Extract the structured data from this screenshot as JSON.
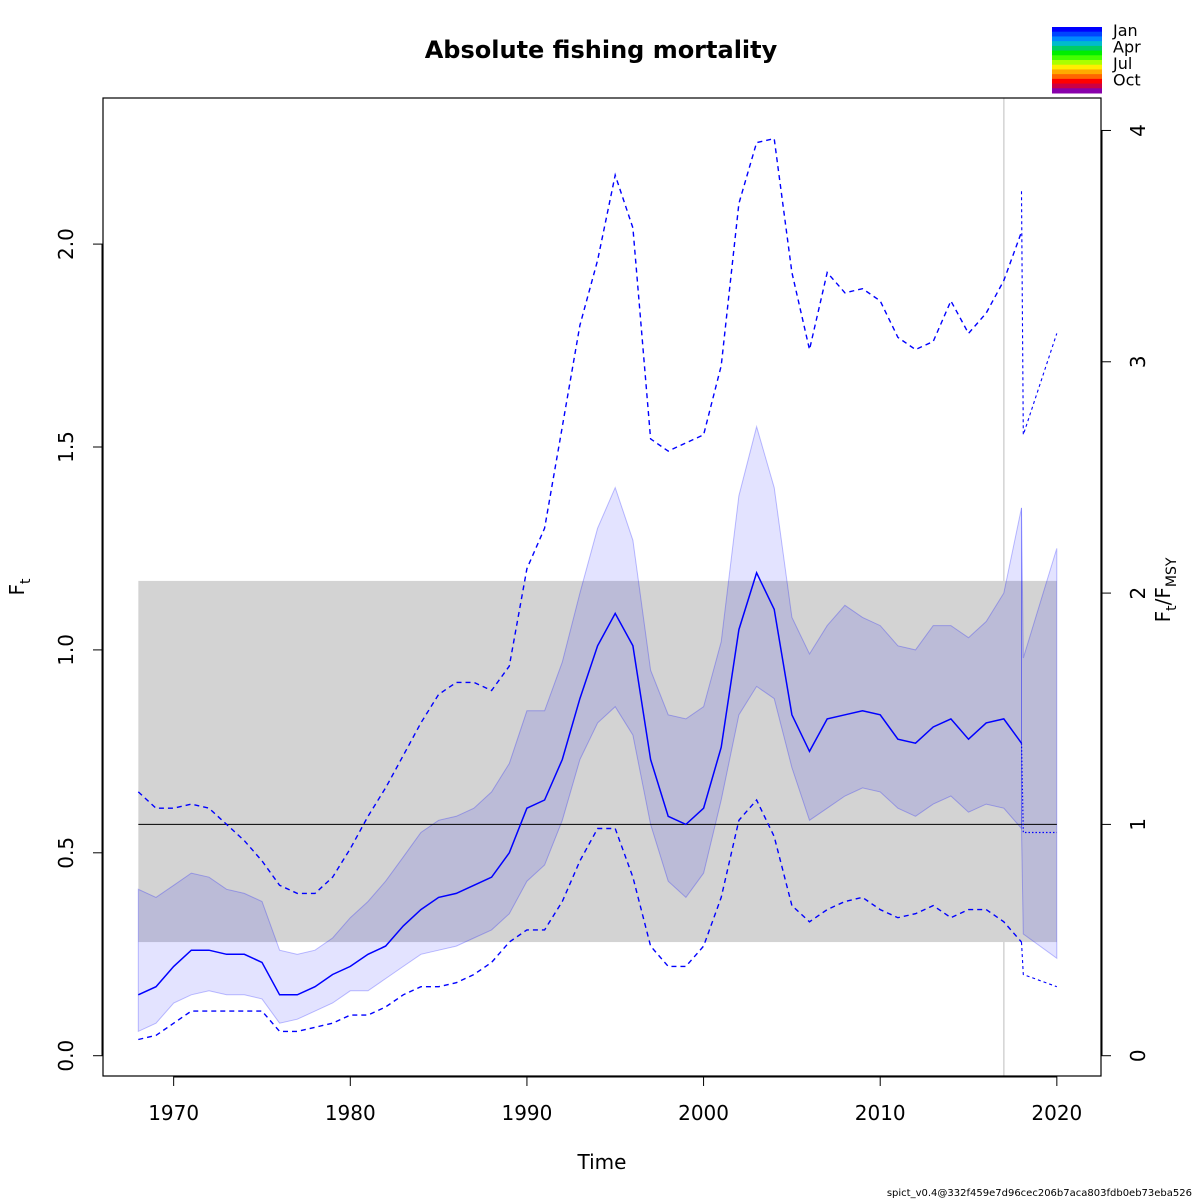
{
  "chart_data": {
    "type": "line",
    "title": "Absolute fishing mortality",
    "xlabel": "Time",
    "ylabel": "F",
    "ylabel_sub": "t",
    "y2label_main": "F",
    "y2label_sub1": "t",
    "y2label_slash": "/F",
    "y2label_sub2": "MSY",
    "xlim": [
      1966,
      2022.5
    ],
    "ylim": [
      -0.05,
      2.36
    ],
    "fmsy": 0.57,
    "x_ticks": [
      "1970",
      "1980",
      "1990",
      "2000",
      "2010",
      "2020"
    ],
    "y_ticks": [
      "0.0",
      "0.5",
      "1.0",
      "1.5",
      "2.0"
    ],
    "y2_ticks": [
      "0",
      "1",
      "2",
      "3",
      "4"
    ],
    "vline_x": 2017,
    "fmsy_band": {
      "x": [
        1968,
        2020
      ],
      "y": [
        0.28,
        1.17
      ]
    },
    "series": [
      {
        "role": "ci_band",
        "x": [
          1968,
          1969,
          1970,
          1971,
          1972,
          1973,
          1974,
          1975,
          1976,
          1977,
          1978,
          1979,
          1980,
          1981,
          1982,
          1983,
          1984,
          1985,
          1986,
          1987,
          1988,
          1989,
          1990,
          1991,
          1992,
          1993,
          1994,
          1995,
          1996,
          1997,
          1998,
          1999,
          2000,
          2001,
          2002,
          2003,
          2004,
          2005,
          2006,
          2007,
          2008,
          2009,
          2010,
          2011,
          2012,
          2013,
          2014,
          2015,
          2016,
          2017,
          2018
        ],
        "upper": [
          0.41,
          0.39,
          0.42,
          0.45,
          0.44,
          0.41,
          0.4,
          0.38,
          0.26,
          0.25,
          0.26,
          0.29,
          0.34,
          0.38,
          0.43,
          0.49,
          0.55,
          0.58,
          0.59,
          0.61,
          0.65,
          0.72,
          0.85,
          0.85,
          0.97,
          1.14,
          1.3,
          1.4,
          1.27,
          0.95,
          0.84,
          0.83,
          0.86,
          1.02,
          1.38,
          1.55,
          1.4,
          1.08,
          0.99,
          1.06,
          1.11,
          1.08,
          1.06,
          1.01,
          1.0,
          1.06,
          1.06,
          1.03,
          1.07,
          1.14,
          1.35
        ],
        "lower": [
          0.06,
          0.08,
          0.13,
          0.15,
          0.16,
          0.15,
          0.15,
          0.14,
          0.08,
          0.09,
          0.11,
          0.13,
          0.16,
          0.16,
          0.19,
          0.22,
          0.25,
          0.26,
          0.27,
          0.29,
          0.31,
          0.35,
          0.43,
          0.47,
          0.58,
          0.73,
          0.82,
          0.86,
          0.79,
          0.57,
          0.43,
          0.39,
          0.45,
          0.63,
          0.84,
          0.91,
          0.88,
          0.71,
          0.58,
          0.61,
          0.64,
          0.66,
          0.65,
          0.61,
          0.59,
          0.62,
          0.64,
          0.6,
          0.62,
          0.61,
          0.56
        ]
      },
      {
        "role": "estimate",
        "x": [
          1968,
          1969,
          1970,
          1971,
          1972,
          1973,
          1974,
          1975,
          1976,
          1977,
          1978,
          1979,
          1980,
          1981,
          1982,
          1983,
          1984,
          1985,
          1986,
          1987,
          1988,
          1989,
          1990,
          1991,
          1992,
          1993,
          1994,
          1995,
          1996,
          1997,
          1998,
          1999,
          2000,
          2001,
          2002,
          2003,
          2004,
          2005,
          2006,
          2007,
          2008,
          2009,
          2010,
          2011,
          2012,
          2013,
          2014,
          2015,
          2016,
          2017,
          2018
        ],
        "values": [
          0.15,
          0.17,
          0.22,
          0.26,
          0.26,
          0.25,
          0.25,
          0.23,
          0.15,
          0.15,
          0.17,
          0.2,
          0.22,
          0.25,
          0.27,
          0.32,
          0.36,
          0.39,
          0.4,
          0.42,
          0.44,
          0.5,
          0.61,
          0.63,
          0.73,
          0.88,
          1.01,
          1.09,
          1.01,
          0.73,
          0.59,
          0.57,
          0.61,
          0.76,
          1.05,
          1.19,
          1.1,
          0.84,
          0.75,
          0.83,
          0.84,
          0.85,
          0.84,
          0.78,
          0.77,
          0.81,
          0.83,
          0.78,
          0.82,
          0.83,
          0.77
        ]
      },
      {
        "role": "upper_dashed",
        "x": [
          1968,
          1969,
          1970,
          1971,
          1972,
          1973,
          1974,
          1975,
          1976,
          1977,
          1978,
          1979,
          1980,
          1981,
          1982,
          1983,
          1984,
          1985,
          1986,
          1987,
          1988,
          1989,
          1990,
          1991,
          1992,
          1993,
          1994,
          1995,
          1996,
          1997,
          1998,
          1999,
          2000,
          2001,
          2002,
          2003,
          2004,
          2005,
          2006,
          2007,
          2008,
          2009,
          2010,
          2011,
          2012,
          2013,
          2014,
          2015,
          2016,
          2017,
          2018
        ],
        "values": [
          0.65,
          0.61,
          0.61,
          0.62,
          0.61,
          0.57,
          0.53,
          0.48,
          0.42,
          0.4,
          0.4,
          0.44,
          0.51,
          0.59,
          0.66,
          0.74,
          0.82,
          0.89,
          0.92,
          0.92,
          0.9,
          0.96,
          1.2,
          1.3,
          1.55,
          1.8,
          1.96,
          2.17,
          2.04,
          1.52,
          1.49,
          1.51,
          1.53,
          1.7,
          2.1,
          2.25,
          2.26,
          1.93,
          1.74,
          1.93,
          1.88,
          1.89,
          1.86,
          1.77,
          1.74,
          1.76,
          1.86,
          1.78,
          1.83,
          1.91,
          2.03
        ]
      },
      {
        "role": "lower_dashed",
        "x": [
          1968,
          1969,
          1970,
          1971,
          1972,
          1973,
          1974,
          1975,
          1976,
          1977,
          1978,
          1979,
          1980,
          1981,
          1982,
          1983,
          1984,
          1985,
          1986,
          1987,
          1988,
          1989,
          1990,
          1991,
          1992,
          1993,
          1994,
          1995,
          1996,
          1997,
          1998,
          1999,
          2000,
          2001,
          2002,
          2003,
          2004,
          2005,
          2006,
          2007,
          2008,
          2009,
          2010,
          2011,
          2012,
          2013,
          2014,
          2015,
          2016,
          2017,
          2018
        ],
        "values": [
          0.04,
          0.05,
          0.08,
          0.11,
          0.11,
          0.11,
          0.11,
          0.11,
          0.06,
          0.06,
          0.07,
          0.08,
          0.1,
          0.1,
          0.12,
          0.15,
          0.17,
          0.17,
          0.18,
          0.2,
          0.23,
          0.28,
          0.31,
          0.31,
          0.38,
          0.48,
          0.56,
          0.56,
          0.44,
          0.27,
          0.22,
          0.22,
          0.27,
          0.39,
          0.58,
          0.63,
          0.54,
          0.37,
          0.33,
          0.36,
          0.38,
          0.39,
          0.36,
          0.34,
          0.35,
          0.37,
          0.34,
          0.36,
          0.36,
          0.33,
          0.28
        ]
      },
      {
        "role": "forecast_ci_band",
        "x": [
          2018,
          2018.1,
          2020
        ],
        "upper": [
          1.35,
          0.98,
          1.25
        ],
        "lower": [
          0.56,
          0.3,
          0.24
        ]
      },
      {
        "role": "forecast_estimate",
        "x": [
          2018,
          2018.1,
          2020
        ],
        "values": [
          0.77,
          0.55,
          0.55
        ]
      },
      {
        "role": "forecast_upper_dashed",
        "x": [
          2018,
          2018.1,
          2020
        ],
        "values": [
          2.13,
          1.53,
          1.78
        ]
      },
      {
        "role": "forecast_lower_dashed",
        "x": [
          2018,
          2018.1,
          2020
        ],
        "values": [
          0.28,
          0.2,
          0.17
        ]
      }
    ],
    "legend": {
      "labels": [
        "Jan",
        "Apr",
        "Jul",
        "Oct"
      ],
      "colors": [
        "#0000ff",
        "#0044ff",
        "#0088ff",
        "#00bbcc",
        "#00cc66",
        "#00ee00",
        "#44ff00",
        "#aaff00",
        "#ffee00",
        "#ffaa00",
        "#ff6600",
        "#ff0000",
        "#cc0044",
        "#8800aa"
      ],
      "placement": "top-right"
    },
    "footer": "spict_v0.4@332f459e7d96cec206b7aca803fdb0eb73eba526",
    "colors": {
      "line": "#0000ff",
      "ci_fill": "#0000ff",
      "band": "#d3d3d3",
      "fmsy_line": "#000000",
      "vline": "#d3d3d3"
    }
  }
}
